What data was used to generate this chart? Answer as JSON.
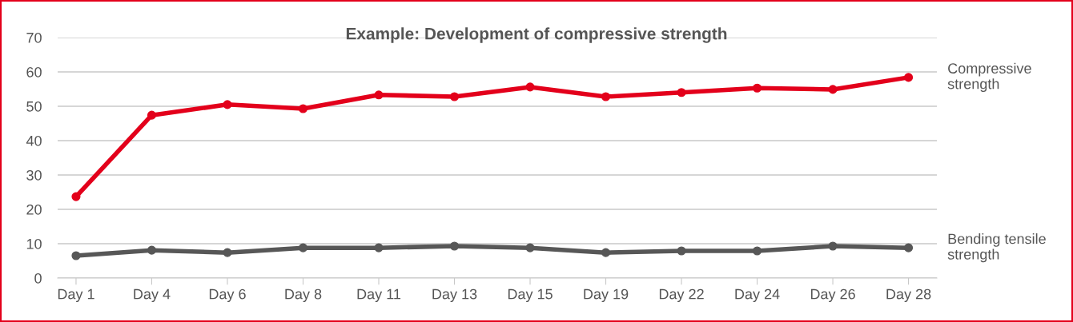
{
  "chart_data": {
    "type": "line",
    "title": "Example: Development of compressive strength",
    "categories": [
      "Day 1",
      "Day 4",
      "Day 6",
      "Day 8",
      "Day 11",
      "Day 13",
      "Day 15",
      "Day 19",
      "Day 22",
      "Day 24",
      "Day 26",
      "Day 28"
    ],
    "series": [
      {
        "name": "Compressive strength",
        "color": "#e3001b",
        "values": [
          23.7,
          47.4,
          50.5,
          49.3,
          53.3,
          52.8,
          55.6,
          52.8,
          54.0,
          55.3,
          54.9,
          58.4
        ]
      },
      {
        "name": "Bending tensile strength",
        "color": "#575757",
        "values": [
          6.5,
          8.1,
          7.4,
          8.8,
          8.8,
          9.3,
          8.8,
          7.4,
          7.9,
          7.9,
          9.3,
          8.8
        ]
      }
    ],
    "ylim": [
      0,
      70
    ],
    "yticks": [
      0,
      10,
      20,
      30,
      40,
      50,
      60,
      70
    ],
    "grid": "y",
    "legend": false,
    "marker": "circle",
    "line_style": "solid"
  }
}
